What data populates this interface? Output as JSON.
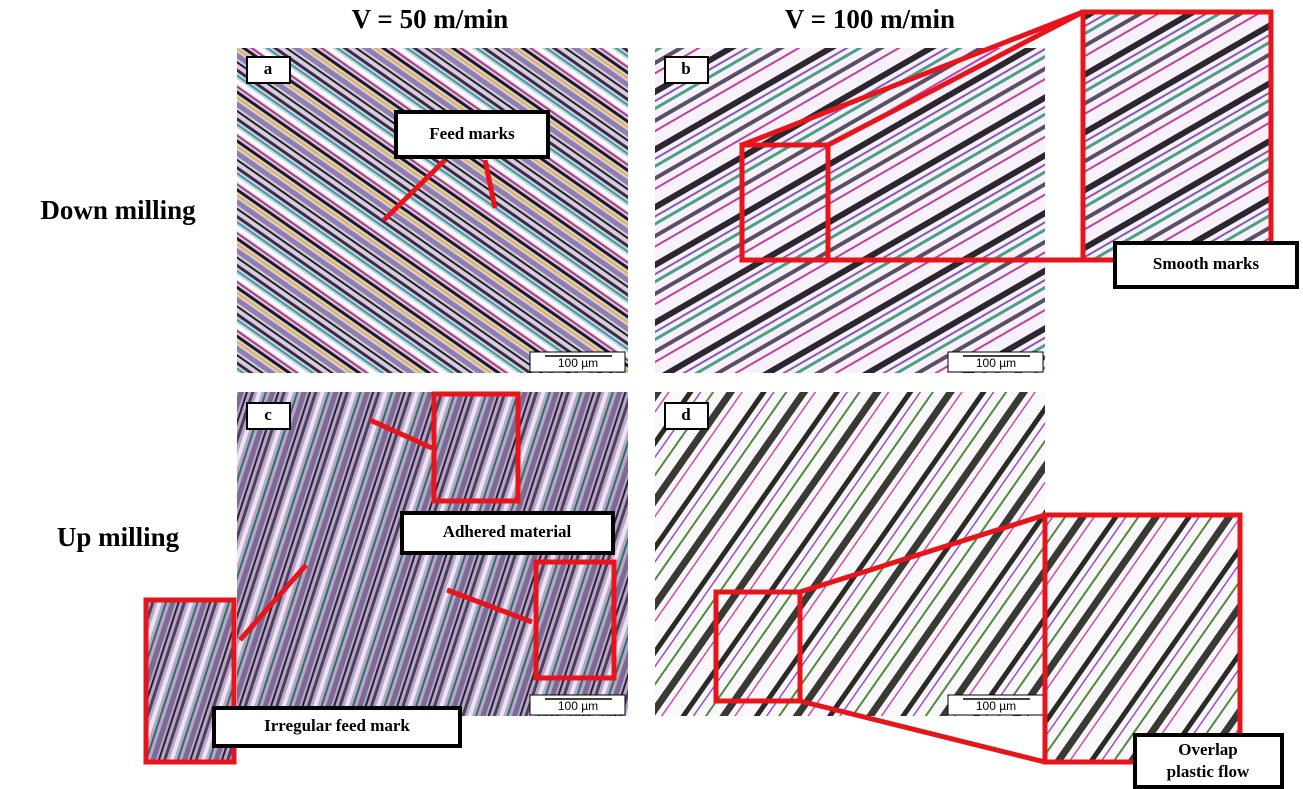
{
  "column_headers": [
    "V = 50 m/min",
    "V = 100 m/min"
  ],
  "row_headers": [
    "Down milling",
    "Up milling"
  ],
  "panels": [
    {
      "label": "a",
      "scale_bar": "100 µm"
    },
    {
      "label": "b",
      "scale_bar": "100 µm"
    },
    {
      "label": "c",
      "scale_bar": "100 µm"
    },
    {
      "label": "d",
      "scale_bar": "100 µm"
    }
  ],
  "annotations": {
    "feed_marks": "Feed marks",
    "smooth_marks": "Smooth marks",
    "adhered_material": "Adhered material",
    "irregular_feed_mark": "Irregular feed mark",
    "overlap_plastic_flow": [
      "Overlap",
      "plastic flow"
    ]
  }
}
